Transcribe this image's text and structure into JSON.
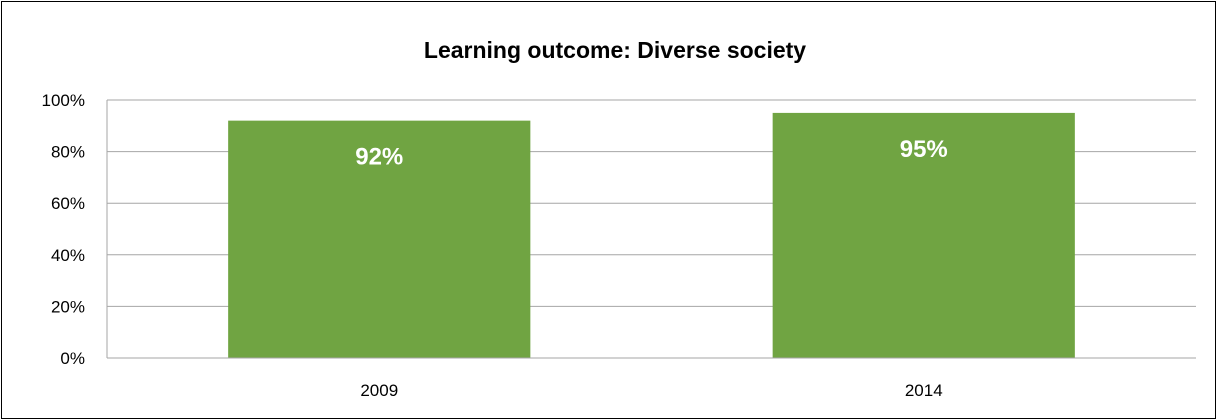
{
  "chart_data": {
    "type": "bar",
    "title": "Learning outcome: Diverse society",
    "xlabel": "",
    "ylabel": "",
    "categories": [
      "2009",
      "2014"
    ],
    "values": [
      92,
      95
    ],
    "data_labels": [
      "92%",
      "95%"
    ],
    "ylim": [
      0,
      100
    ],
    "y_ticks": [
      0,
      20,
      40,
      60,
      80,
      100
    ],
    "y_tick_labels": [
      "0%",
      "20%",
      "40%",
      "60%",
      "80%",
      "100%"
    ],
    "grid": true,
    "legend": "none",
    "colors": {
      "bar": "#70a442",
      "grid": "#a6a6a6",
      "axis": "#a6a6a6",
      "border": "#000000",
      "data_label": "#ffffff"
    }
  }
}
